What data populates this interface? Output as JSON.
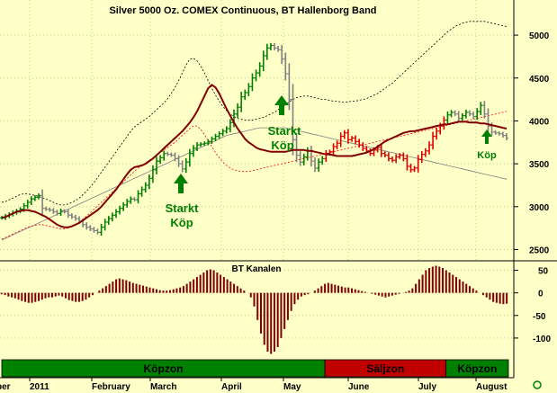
{
  "chart_data": [
    {
      "type": "bar",
      "title": "Silver 5000 Oz. COMEX Continuous, BT Hallenborg Band",
      "ylim": [
        2400,
        5200
      ],
      "y_ticks": [
        2500,
        3000,
        3500,
        4000,
        4500,
        5000
      ],
      "legend": "none",
      "grid": true,
      "bar_colors": {
        "up": "#008000",
        "down": "#808080",
        "sell": "#e00000"
      },
      "line_colors": {
        "average": "#800000",
        "band": "#000000",
        "band_lower": "#ff0000",
        "trend": "#808080"
      },
      "closes": [
        2870,
        2890,
        2910,
        2930,
        2950,
        2970,
        3010,
        3050,
        3090,
        3110,
        3130,
        2980,
        2970,
        2960,
        2940,
        2920,
        2950,
        2940,
        2900,
        2880,
        2860,
        2830,
        2790,
        2760,
        2740,
        2720,
        2700,
        2760,
        2820,
        2860,
        2900,
        2940,
        2980,
        3020,
        3060,
        3090,
        3080,
        3150,
        3200,
        3250,
        3330,
        3430,
        3530,
        3570,
        3620,
        3610,
        3600,
        3560,
        3500,
        3440,
        3520,
        3620,
        3680,
        3720,
        3730,
        3740,
        3760,
        3790,
        3820,
        3850,
        3880,
        3910,
        3980,
        4080,
        4160,
        4280,
        4330,
        4400,
        4500,
        4560,
        4640,
        4760,
        4850,
        4880,
        4850,
        4830,
        4720,
        4550,
        4250,
        3780,
        3600,
        3520,
        3580,
        3650,
        3530,
        3450,
        3520,
        3560,
        3620,
        3640,
        3700,
        3740,
        3820,
        3860,
        3780,
        3800,
        3760,
        3720,
        3680,
        3650,
        3620,
        3660,
        3690,
        3620,
        3600,
        3560,
        3540,
        3580,
        3600,
        3560,
        3470,
        3430,
        3450,
        3550,
        3610,
        3650,
        3720,
        3820,
        3880,
        3940,
        4010,
        4070,
        4100,
        4080,
        4030,
        4060,
        4100,
        4080,
        4050,
        4110,
        4180,
        4080,
        3940,
        3870,
        3860,
        3850,
        3830,
        3800
      ],
      "average": [
        2870,
        2880,
        2900,
        2920,
        2940,
        2950,
        2960,
        2960,
        2950,
        2940,
        2920,
        2900,
        2880,
        2850,
        2820,
        2790,
        2770,
        2760,
        2760,
        2770,
        2790,
        2810,
        2840,
        2870,
        2900,
        2930,
        2960,
        3000,
        3050,
        3100,
        3150,
        3200,
        3260,
        3320,
        3380,
        3430,
        3460,
        3470,
        3480,
        3500,
        3530,
        3560,
        3600,
        3640,
        3680,
        3720,
        3760,
        3800,
        3840,
        3880,
        3930,
        3980,
        4040,
        4110,
        4200,
        4290,
        4380,
        4420,
        4390,
        4320,
        4230,
        4140,
        4060,
        3980,
        3910,
        3850,
        3790,
        3750,
        3720,
        3690,
        3670,
        3660,
        3650,
        3640,
        3640,
        3640,
        3640,
        3640,
        3650,
        3660,
        3660,
        3660,
        3660,
        3650,
        3650,
        3640,
        3630,
        3620,
        3610,
        3610,
        3600,
        3590,
        3590,
        3590,
        3590,
        3590,
        3600,
        3610,
        3620,
        3630,
        3650,
        3670,
        3700,
        3730,
        3760,
        3780,
        3800,
        3820,
        3840,
        3860,
        3870,
        3880,
        3880,
        3890,
        3900,
        3910,
        3920,
        3930,
        3940,
        3950,
        3960,
        3960,
        3970,
        3980,
        3990,
        3990,
        3990,
        3980,
        3980,
        3980,
        3970,
        3970,
        3960,
        3950,
        3940,
        3930,
        3920,
        3910
      ],
      "upper_band": [
        3050,
        3060,
        3080,
        3100,
        3120,
        3140,
        3150,
        3150,
        3140,
        3130,
        3120,
        3100,
        3090,
        3070,
        3050,
        3030,
        3020,
        3020,
        3030,
        3050,
        3070,
        3100,
        3140,
        3180,
        3230,
        3280,
        3340,
        3400,
        3460,
        3520,
        3580,
        3640,
        3700,
        3760,
        3820,
        3880,
        3930,
        3960,
        3990,
        4020,
        4050,
        4090,
        4130,
        4170,
        4210,
        4260,
        4320,
        4390,
        4470,
        4560,
        4650,
        4720,
        4730,
        4700,
        4640,
        4560,
        4470,
        4380,
        4300,
        4230,
        4170,
        4120,
        4080,
        4050,
        4030,
        4020,
        4010,
        4010,
        4010,
        4020,
        4030,
        4040,
        4060,
        4080,
        4100,
        4130,
        4160,
        4190,
        4220,
        4250,
        4270,
        4280,
        4290,
        4290,
        4280,
        4270,
        4260,
        4250,
        4250,
        4240,
        4230,
        4230,
        4220,
        4220,
        4220,
        4230,
        4230,
        4240,
        4250,
        4260,
        4280,
        4300,
        4320,
        4350,
        4380,
        4410,
        4440,
        4480,
        4520,
        4560,
        4600,
        4640,
        4680,
        4720,
        4760,
        4800,
        4840,
        4880,
        4920,
        4960,
        5000,
        5040,
        5070,
        5100,
        5120,
        5140,
        5150,
        5160,
        5160,
        5160,
        5160,
        5160,
        5150,
        5140,
        5130,
        5120,
        5110,
        5100
      ],
      "lower_band": [
        2620,
        2640,
        2660,
        2680,
        2700,
        2720,
        2740,
        2760,
        2770,
        2780,
        2790,
        2790,
        2780,
        2770,
        2760,
        2750,
        2740,
        2740,
        2750,
        2770,
        2790,
        2820,
        2850,
        2890,
        2930,
        2970,
        3010,
        3050,
        3090,
        3130,
        3170,
        3210,
        3250,
        3290,
        3330,
        3370,
        3410,
        3450,
        3480,
        3510,
        3540,
        3570,
        3600,
        3630,
        3660,
        3690,
        3720,
        3750,
        3790,
        3830,
        3870,
        3910,
        3940,
        3940,
        3900,
        3840,
        3770,
        3700,
        3630,
        3570,
        3520,
        3480,
        3450,
        3430,
        3420,
        3410,
        3410,
        3410,
        3420,
        3430,
        3440,
        3450,
        3460,
        3470,
        3480,
        3490,
        3500,
        3510,
        3520,
        3530,
        3540,
        3550,
        3560,
        3570,
        3580,
        3590,
        3600,
        3610,
        3620,
        3630,
        3640,
        3650,
        3660,
        3670,
        3680,
        3690,
        3700,
        3710,
        3720,
        3730,
        3740,
        3750,
        3760,
        3770,
        3780,
        3790,
        3800,
        3810,
        3820,
        3830,
        3840,
        3850,
        3860,
        3870,
        3880,
        3890,
        3900,
        3910,
        3920,
        3930,
        3940,
        3950,
        3960,
        3970,
        3980,
        3990,
        4000,
        4010,
        4020,
        4030,
        4040,
        4050,
        4060,
        4070,
        4080,
        4090,
        4100,
        4110
      ],
      "trend": [
        2610,
        2630,
        2650,
        2670,
        2690,
        2710,
        2730,
        2750,
        2770,
        2790,
        2810,
        2830,
        2850,
        2870,
        2890,
        2910,
        2930,
        2950,
        2970,
        2990,
        3010,
        3030,
        3050,
        3070,
        3090,
        3110,
        3130,
        3150,
        3170,
        3190,
        3210,
        3230,
        3250,
        3270,
        3290,
        3310,
        3330,
        3350,
        3370,
        3390,
        3410,
        3430,
        3450,
        3470,
        3490,
        3510,
        3530,
        3550,
        3570,
        3590,
        3610,
        3630,
        3650,
        3670,
        3690,
        3710,
        3730,
        3750,
        3770,
        3790,
        3810,
        3830,
        3840,
        3850,
        3860,
        3870,
        3880,
        3890,
        3900,
        3910,
        3920,
        3920,
        3920,
        3920,
        3920,
        3920,
        3920,
        3920,
        3910,
        3900,
        3890,
        3880,
        3870,
        3860,
        3850,
        3840,
        3830,
        3820,
        3810,
        3800,
        3790,
        3780,
        3770,
        3760,
        3750,
        3740,
        3730,
        3720,
        3710,
        3700,
        3690,
        3680,
        3670,
        3660,
        3650,
        3640,
        3630,
        3620,
        3610,
        3600,
        3590,
        3580,
        3570,
        3560,
        3550,
        3540,
        3530,
        3520,
        3510,
        3500,
        3490,
        3480,
        3470,
        3460,
        3450,
        3440,
        3430,
        3420,
        3410,
        3400,
        3390,
        3380,
        3370,
        3360,
        3350,
        3340,
        3330,
        3320
      ],
      "annotations": [
        {
          "text": [
            "Starkt",
            "Köp"
          ],
          "color": "#008000",
          "at": 3400
        },
        {
          "text": [
            "Starkt",
            "Köp"
          ],
          "color": "#008000",
          "at": 4100
        },
        {
          "text": [
            "Köp"
          ],
          "color": "#008000",
          "at": 3700
        }
      ]
    },
    {
      "type": "bar",
      "title": "BT Kanalen",
      "ylim": [
        -140,
        65
      ],
      "y_ticks": [
        50,
        0,
        -50,
        -100
      ],
      "color": "#800000",
      "values": [
        -3,
        -5,
        -8,
        -10,
        -12,
        -15,
        -18,
        -20,
        -22,
        -22,
        -20,
        -18,
        -15,
        -12,
        -10,
        -10,
        -8,
        -6,
        -8,
        -12,
        -16,
        -18,
        -20,
        -20,
        -18,
        -15,
        -10,
        -5,
        0,
        5,
        10,
        15,
        20,
        25,
        30,
        32,
        30,
        28,
        25,
        22,
        20,
        18,
        16,
        14,
        12,
        10,
        8,
        6,
        5,
        5,
        6,
        8,
        10,
        12,
        15,
        20,
        25,
        30,
        35,
        40,
        45,
        50,
        52,
        50,
        45,
        40,
        35,
        30,
        25,
        20,
        15,
        10,
        5,
        0,
        -10,
        -30,
        -60,
        -90,
        -115,
        -130,
        -135,
        -130,
        -120,
        -100,
        -80,
        -60,
        -40,
        -25,
        -15,
        -8,
        -5,
        -3,
        0,
        5,
        10,
        15,
        20,
        22,
        20,
        18,
        16,
        14,
        12,
        12,
        10,
        8,
        6,
        4,
        2,
        0,
        -2,
        -4,
        -6,
        -8,
        -10,
        -8,
        -6,
        -4,
        -2,
        0,
        2,
        5,
        10,
        20,
        30,
        40,
        50,
        55,
        58,
        60,
        58,
        55,
        50,
        45,
        40,
        35,
        30,
        25,
        20,
        15,
        10,
        5,
        0,
        -5,
        -10,
        -15,
        -20,
        -22,
        -24,
        -25,
        -24
      ],
      "zones": [
        {
          "label": "Köpzon",
          "color": "#008000",
          "span": [
            0,
            88
          ]
        },
        {
          "label": "Säljzon",
          "color": "#c00000",
          "span": [
            88,
            121
          ]
        },
        {
          "label": "Köpzon",
          "color": "#008000",
          "span": [
            121,
            138
          ]
        }
      ]
    }
  ],
  "x_axis": {
    "labels": [
      "ber",
      "2011",
      "February",
      "March",
      "April",
      "May",
      "June",
      "July",
      "August"
    ]
  }
}
